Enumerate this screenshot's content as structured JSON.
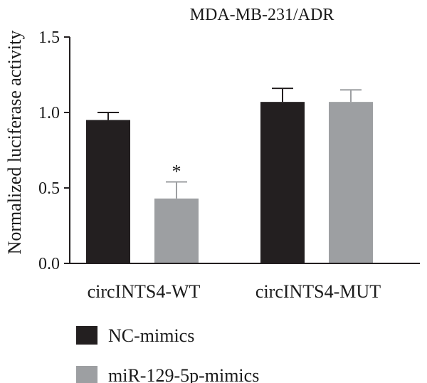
{
  "chart_data": {
    "type": "bar",
    "title": "MDA-MB-231/ADR",
    "ylabel": "Normalized luciferase activity",
    "xlabel": "",
    "ylim": [
      0,
      1.5
    ],
    "yticks": [
      "0.0",
      "0.5",
      "1.0",
      "1.5"
    ],
    "categories": [
      "circINTS4-WT",
      "circINTS4-MUT"
    ],
    "series": [
      {
        "name": "NC-mimics",
        "color": "#231f20",
        "values": [
          0.95,
          1.07
        ],
        "errors": [
          0.05,
          0.09
        ]
      },
      {
        "name": "miR-129-5p-mimics",
        "color": "#9d9fa2",
        "values": [
          0.43,
          1.07
        ],
        "errors": [
          0.11,
          0.08
        ]
      }
    ],
    "annotations": [
      {
        "text": "*",
        "category": 0,
        "series": 1
      }
    ],
    "legend_placement": "bottom-left",
    "grid": false
  }
}
